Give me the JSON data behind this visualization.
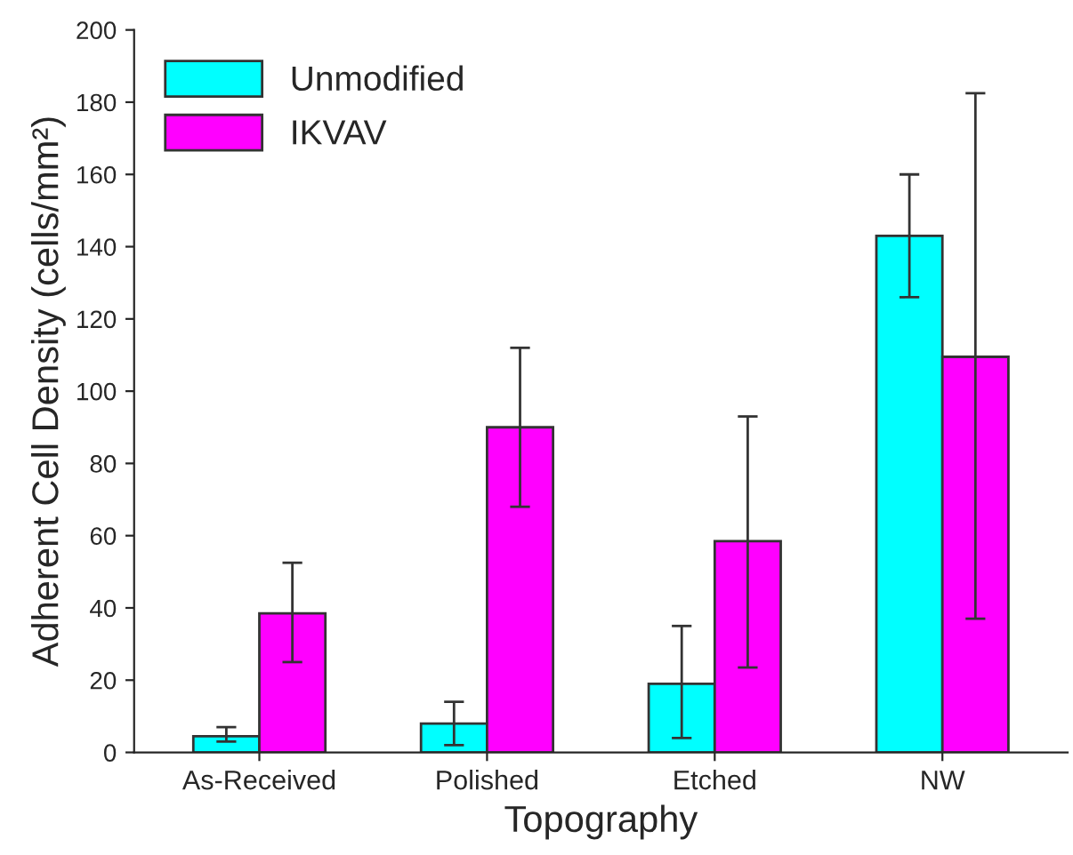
{
  "chart_data": {
    "type": "bar",
    "xlabel": "Topography",
    "ylabel": "Adherent Cell Density (cells/mm²)",
    "categories": [
      "As-Received",
      "Polished",
      "Etched",
      "NW"
    ],
    "series": [
      {
        "name": "Unmodified",
        "color": "#00ffff",
        "values": [
          4.5,
          8,
          19,
          143
        ],
        "errors": [
          [
            3,
            7
          ],
          [
            2,
            14
          ],
          [
            4,
            35
          ],
          [
            126,
            160
          ]
        ]
      },
      {
        "name": "IKVAV",
        "color": "#ff00ff",
        "values": [
          38.5,
          90,
          58.5,
          109.5
        ],
        "errors": [
          [
            25,
            52.5
          ],
          [
            68,
            112
          ],
          [
            23.5,
            93
          ],
          [
            37,
            182.5
          ]
        ]
      }
    ],
    "ylim": [
      0,
      200
    ],
    "yticks": [
      0,
      20,
      40,
      60,
      80,
      100,
      120,
      140,
      160,
      180,
      200
    ],
    "grid": false,
    "legend": "top left"
  }
}
